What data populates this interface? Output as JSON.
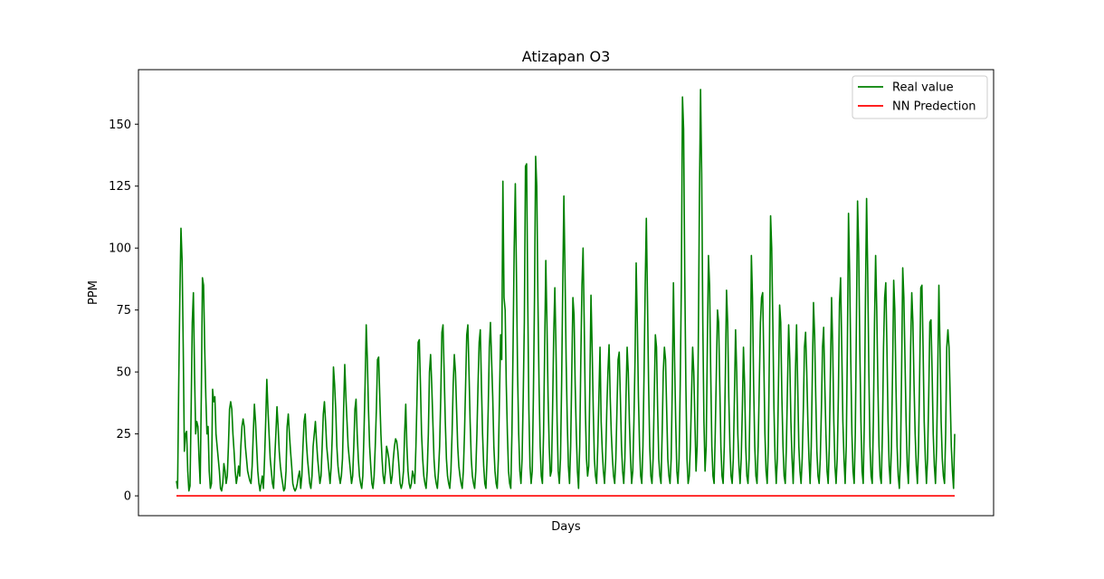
{
  "chart_data": {
    "type": "line",
    "title": "Atizapan O3",
    "xlabel": "Days",
    "ylabel": "PPM",
    "ylim": [
      -8,
      172
    ],
    "yticks": [
      0,
      25,
      50,
      75,
      100,
      125,
      150
    ],
    "x_ticks_shown": false,
    "grid": false,
    "legend_position": "top-right",
    "series": [
      {
        "name": "Real value",
        "color": "#008000",
        "values": [
          6,
          3,
          45,
          80,
          108,
          95,
          60,
          18,
          25,
          26,
          10,
          2,
          4,
          35,
          70,
          82,
          50,
          25,
          30,
          28,
          15,
          5,
          40,
          88,
          85,
          60,
          40,
          25,
          28,
          10,
          3,
          5,
          43,
          38,
          40,
          25,
          20,
          15,
          10,
          3,
          2,
          5,
          13,
          10,
          5,
          8,
          20,
          35,
          38,
          35,
          25,
          18,
          10,
          5,
          8,
          12,
          8,
          20,
          28,
          31,
          28,
          20,
          15,
          10,
          8,
          6,
          5,
          12,
          25,
          37,
          30,
          20,
          10,
          5,
          2,
          5,
          8,
          3,
          15,
          30,
          47,
          35,
          25,
          15,
          10,
          5,
          3,
          15,
          25,
          36,
          28,
          18,
          12,
          8,
          5,
          2,
          3,
          10,
          28,
          33,
          25,
          18,
          12,
          5,
          3,
          2,
          3,
          5,
          8,
          10,
          3,
          8,
          20,
          30,
          33,
          22,
          15,
          10,
          5,
          3,
          8,
          20,
          25,
          30,
          22,
          15,
          10,
          5,
          8,
          20,
          33,
          38,
          30,
          20,
          15,
          10,
          5,
          12,
          25,
          52,
          45,
          35,
          20,
          12,
          8,
          5,
          8,
          15,
          35,
          53,
          40,
          30,
          20,
          15,
          10,
          5,
          8,
          20,
          35,
          39,
          25,
          15,
          8,
          5,
          3,
          8,
          25,
          45,
          69,
          55,
          35,
          20,
          12,
          5,
          3,
          8,
          20,
          35,
          55,
          56,
          40,
          25,
          15,
          8,
          5,
          10,
          20,
          18,
          15,
          10,
          5,
          8,
          15,
          20,
          23,
          22,
          18,
          12,
          5,
          3,
          5,
          10,
          25,
          37,
          20,
          10,
          5,
          3,
          5,
          10,
          8,
          5,
          20,
          40,
          62,
          63,
          45,
          25,
          15,
          8,
          5,
          3,
          10,
          25,
          50,
          57,
          45,
          30,
          15,
          8,
          5,
          3,
          10,
          20,
          40,
          66,
          69,
          50,
          30,
          15,
          8,
          5,
          3,
          10,
          25,
          45,
          57,
          50,
          35,
          20,
          12,
          8,
          5,
          3,
          10,
          25,
          45,
          65,
          69,
          50,
          30,
          15,
          8,
          5,
          3,
          10,
          25,
          45,
          62,
          67,
          45,
          25,
          12,
          5,
          3,
          15,
          35,
          60,
          70,
          55,
          40,
          20,
          10,
          5,
          3,
          15,
          40,
          65,
          55,
          127,
          80,
          75,
          45,
          25,
          10,
          5,
          3,
          25,
          60,
          100,
          126,
          90,
          50,
          25,
          10,
          5,
          15,
          40,
          70,
          133,
          134,
          80,
          35,
          12,
          5,
          10,
          40,
          80,
          137,
          125,
          80,
          45,
          20,
          8,
          5,
          25,
          60,
          95,
          70,
          40,
          20,
          8,
          10,
          35,
          65,
          84,
          60,
          30,
          10,
          5,
          15,
          45,
          85,
          121,
          90,
          55,
          30,
          12,
          5,
          20,
          50,
          80,
          73,
          45,
          25,
          10,
          3,
          20,
          55,
          85,
          100,
          70,
          35,
          15,
          8,
          12,
          45,
          81,
          60,
          35,
          15,
          8,
          5,
          20,
          40,
          60,
          30,
          18,
          10,
          5,
          15,
          35,
          50,
          61,
          40,
          25,
          15,
          8,
          5,
          15,
          35,
          55,
          58,
          40,
          20,
          10,
          5,
          15,
          40,
          60,
          50,
          30,
          15,
          5,
          10,
          30,
          55,
          94,
          70,
          40,
          20,
          8,
          5,
          20,
          50,
          85,
          112,
          80,
          45,
          20,
          8,
          5,
          15,
          40,
          65,
          60,
          35,
          15,
          8,
          5,
          25,
          50,
          60,
          55,
          35,
          15,
          8,
          5,
          15,
          45,
          86,
          55,
          30,
          10,
          5,
          15,
          45,
          85,
          161,
          148,
          90,
          45,
          15,
          5,
          8,
          20,
          40,
          60,
          50,
          30,
          10,
          20,
          60,
          120,
          164,
          130,
          70,
          30,
          10,
          20,
          60,
          97,
          85,
          50,
          20,
          8,
          5,
          25,
          50,
          75,
          70,
          45,
          20,
          8,
          5,
          20,
          50,
          83,
          70,
          40,
          20,
          8,
          5,
          15,
          40,
          67,
          50,
          25,
          12,
          5,
          15,
          35,
          60,
          45,
          20,
          8,
          5,
          15,
          45,
          97,
          80,
          45,
          20,
          8,
          5,
          20,
          45,
          70,
          80,
          82,
          55,
          25,
          10,
          5,
          20,
          60,
          113,
          100,
          70,
          35,
          15,
          5,
          15,
          45,
          77,
          70,
          40,
          20,
          8,
          5,
          20,
          45,
          69,
          55,
          30,
          15,
          5,
          20,
          50,
          69,
          45,
          20,
          10,
          5,
          15,
          35,
          60,
          66,
          50,
          30,
          15,
          5,
          20,
          50,
          78,
          65,
          40,
          18,
          8,
          5,
          15,
          35,
          60,
          68,
          45,
          25,
          10,
          5,
          20,
          50,
          80,
          60,
          30,
          12,
          5,
          15,
          40,
          78,
          88,
          60,
          30,
          15,
          5,
          20,
          60,
          114,
          90,
          55,
          25,
          10,
          5,
          25,
          70,
          119,
          100,
          60,
          30,
          10,
          5,
          30,
          80,
          120,
          90,
          50,
          20,
          8,
          5,
          30,
          70,
          97,
          75,
          45,
          20,
          8,
          5,
          25,
          60,
          80,
          86,
          60,
          30,
          12,
          5,
          20,
          50,
          87,
          75,
          45,
          20,
          8,
          3,
          15,
          50,
          92,
          80,
          55,
          30,
          12,
          5,
          25,
          60,
          82,
          70,
          45,
          25,
          12,
          5,
          20,
          50,
          84,
          85,
          60,
          30,
          15,
          5,
          15,
          40,
          70,
          71,
          50,
          25,
          12,
          5,
          20,
          50,
          85,
          60,
          30,
          15,
          8,
          5,
          25,
          60,
          67,
          60,
          40,
          20,
          10,
          3,
          25
        ]
      },
      {
        "name": "NN Predection",
        "color": "#ff0000",
        "values": [
          0,
          0
        ]
      }
    ]
  }
}
